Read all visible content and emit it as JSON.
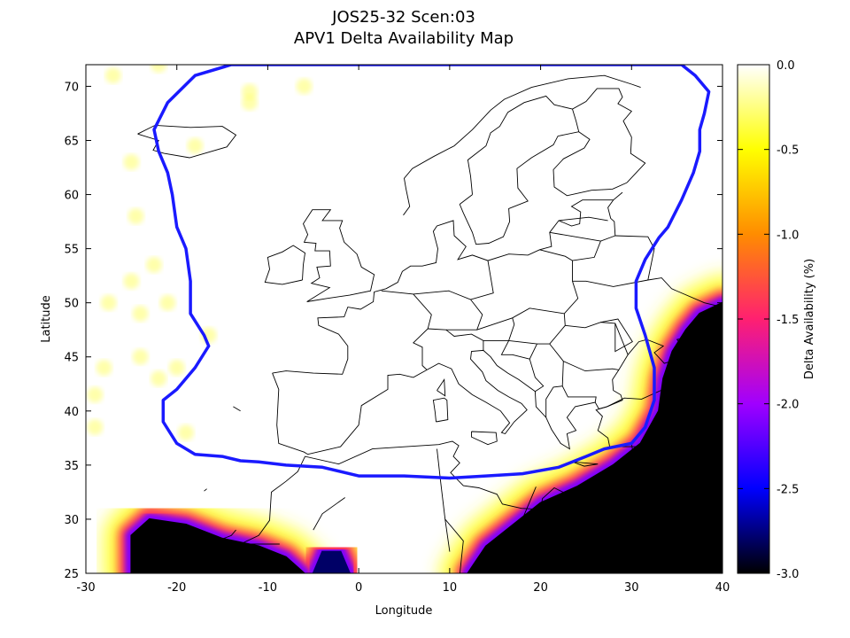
{
  "chart_data": {
    "type": "heatmap",
    "title": "JOS25-32 Scen:03",
    "subtitle": "APV1 Delta Availability Map",
    "xlabel": "Longitude",
    "ylabel": "Latitude",
    "xlim": [
      -30,
      40
    ],
    "ylim": [
      25,
      72
    ],
    "x_ticks": [
      "-30",
      "-20",
      "-10",
      "0",
      "10",
      "20",
      "30",
      "40"
    ],
    "x_tick_values": [
      -30,
      -20,
      -10,
      0,
      10,
      20,
      30,
      40
    ],
    "y_ticks": [
      "25",
      "30",
      "35",
      "40",
      "45",
      "50",
      "55",
      "60",
      "65",
      "70"
    ],
    "y_tick_values": [
      25,
      30,
      35,
      40,
      45,
      50,
      55,
      60,
      65,
      70
    ],
    "colorbar": {
      "label": "Delta Availability (%)",
      "range": [
        -3.0,
        0.0
      ],
      "ticks": [
        "0.0",
        "-0.5",
        "-1.0",
        "-1.5",
        "-2.0",
        "-2.5",
        "-3.0"
      ],
      "tick_values": [
        0.0,
        -0.5,
        -1.0,
        -1.5,
        -2.0,
        -2.5,
        -3.0
      ],
      "colors": [
        "#000000",
        "#0000ff",
        "#a000ff",
        "#ff2070",
        "#ff8c00",
        "#ffff00",
        "#ffffff"
      ]
    },
    "service_area_boundary": {
      "color": "#1a1aff",
      "points": [
        [
          -14,
          72
        ],
        [
          -18,
          71
        ],
        [
          -21,
          68.5
        ],
        [
          -22.5,
          66
        ],
        [
          -22,
          64
        ],
        [
          -21,
          62
        ],
        [
          -20.5,
          60
        ],
        [
          -20,
          57
        ],
        [
          -19,
          55
        ],
        [
          -18.5,
          52
        ],
        [
          -18.5,
          49
        ],
        [
          -17,
          47
        ],
        [
          -16.5,
          46
        ],
        [
          -18,
          44
        ],
        [
          -20,
          42
        ],
        [
          -21.5,
          41
        ],
        [
          -21.5,
          39
        ],
        [
          -20,
          37
        ],
        [
          -18,
          36
        ],
        [
          -15,
          35.8
        ],
        [
          -13,
          35.4
        ],
        [
          -11,
          35.3
        ],
        [
          -8,
          35
        ],
        [
          -4,
          34.8
        ],
        [
          0,
          34
        ],
        [
          5,
          34
        ],
        [
          10,
          33.8
        ],
        [
          14,
          34
        ],
        [
          18,
          34.2
        ],
        [
          22,
          34.8
        ],
        [
          25,
          35.8
        ],
        [
          27,
          36.5
        ],
        [
          30,
          37
        ],
        [
          31.5,
          38.5
        ],
        [
          32.5,
          41
        ],
        [
          32.5,
          44
        ],
        [
          31.5,
          47
        ],
        [
          30.5,
          49.5
        ],
        [
          30.5,
          52
        ],
        [
          31.5,
          54
        ],
        [
          33,
          56
        ],
        [
          34,
          57
        ],
        [
          35.5,
          59.5
        ],
        [
          36.8,
          62
        ],
        [
          37.5,
          64
        ],
        [
          37.5,
          66
        ],
        [
          38,
          67.5
        ],
        [
          38.5,
          69.5
        ],
        [
          37,
          71
        ],
        [
          35.5,
          72
        ]
      ]
    },
    "degradation_regions": [
      {
        "name": "south-west",
        "value": -3.0,
        "points": [
          [
            -25,
            25
          ],
          [
            -25,
            28.5
          ],
          [
            -23,
            30
          ],
          [
            -19,
            29.5
          ],
          [
            -15,
            28.2
          ],
          [
            -11,
            27.5
          ],
          [
            -8,
            26.5
          ],
          [
            -6,
            25
          ]
        ]
      },
      {
        "name": "south-central",
        "value": -2.8,
        "points": [
          [
            -5,
            25
          ],
          [
            -4,
            27
          ],
          [
            -2,
            27
          ],
          [
            -1,
            25
          ]
        ]
      },
      {
        "name": "south-east",
        "value": -3.0,
        "points": [
          [
            12,
            25
          ],
          [
            14,
            27.5
          ],
          [
            17,
            29.5
          ],
          [
            20,
            31.5
          ],
          [
            24,
            33
          ],
          [
            28,
            35
          ],
          [
            31,
            37
          ],
          [
            33,
            40
          ],
          [
            33.5,
            43
          ],
          [
            34.5,
            45.5
          ],
          [
            36,
            47.5
          ],
          [
            37.5,
            49
          ],
          [
            40,
            50
          ],
          [
            40,
            25
          ]
        ]
      }
    ],
    "degradation_halo": {
      "outer": -0.4,
      "mid": -1.4,
      "inner": -2.1
    },
    "scattered_spots": {
      "value": -0.3,
      "points": [
        [
          -25,
          63
        ],
        [
          -24.5,
          58
        ],
        [
          -25,
          52
        ],
        [
          -24,
          49
        ],
        [
          -21,
          50
        ],
        [
          -22.5,
          53.5
        ],
        [
          -27.5,
          50
        ],
        [
          -16.5,
          47
        ],
        [
          -20,
          44
        ],
        [
          -22,
          43
        ],
        [
          -28,
          44
        ],
        [
          -29,
          41.5
        ],
        [
          -29,
          38.5
        ],
        [
          -19,
          38
        ],
        [
          -12,
          69.5
        ],
        [
          -12,
          68.5
        ],
        [
          -6,
          70
        ],
        [
          -22,
          72
        ],
        [
          -18,
          64.5
        ],
        [
          -27,
          71
        ],
        [
          -24,
          45
        ]
      ]
    }
  }
}
